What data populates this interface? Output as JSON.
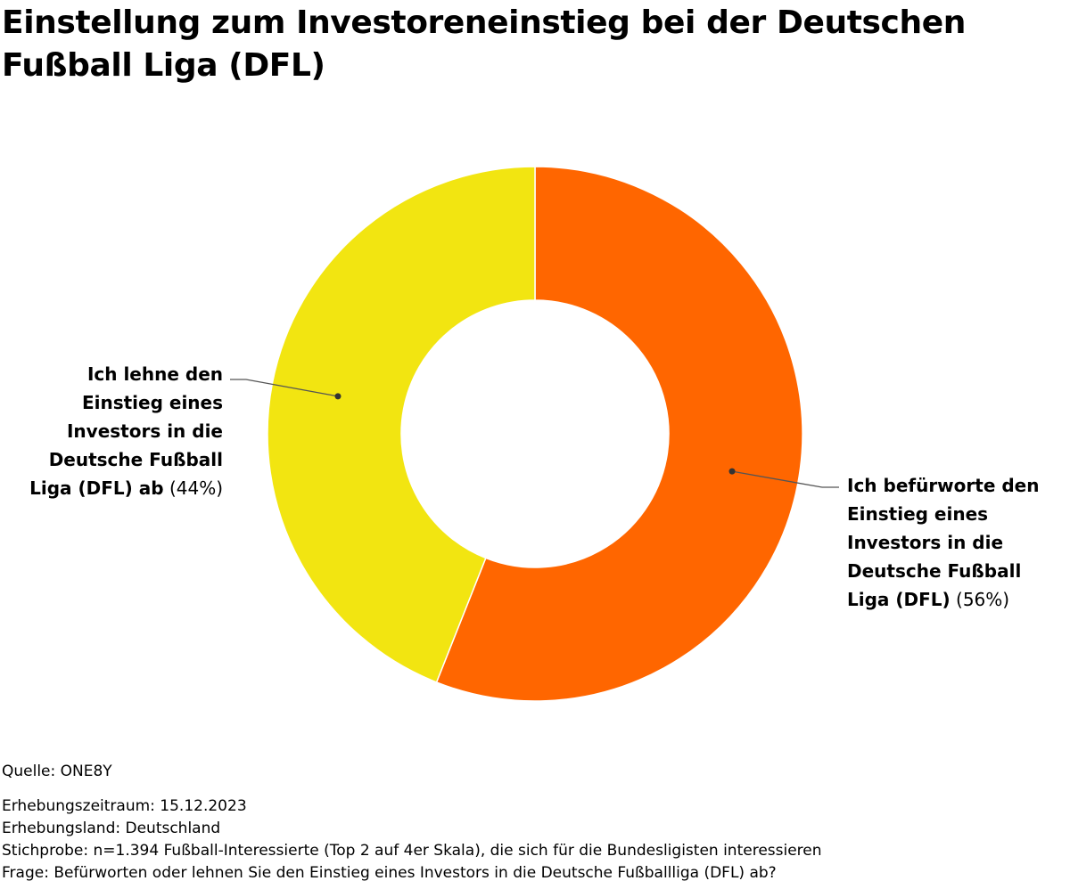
{
  "title": "Einstellung zum Investoreneinstieg bei der Deutschen Fußball Liga (DFL)",
  "chart_data": {
    "type": "pie",
    "variant": "donut",
    "title": "Einstellung zum Investoreneinstieg bei der Deutschen Fußball Liga (DFL)",
    "unit": "%",
    "legend": "none",
    "slices": [
      {
        "label": "Ich befürworte den Einstieg eines Investors in die Deutsche Fußball Liga (DFL)",
        "value": 56,
        "value_label": "(56%)",
        "color": "#ff6600"
      },
      {
        "label": "Ich lehne den Einstieg eines Investors in die Deutsche Fußball Liga (DFL) ab",
        "value": 44,
        "value_label": "(44%)",
        "color": "#f2e511"
      }
    ]
  },
  "footer": {
    "source": "Quelle: ONE8Y",
    "period": "Erhebungszeitraum: 15.12.2023",
    "country": "Erhebungsland: Deutschland",
    "sample": "Stichprobe: n=1.394 Fußball-Interessierte (Top 2 auf 4er Skala), die sich für die Bundesligisten interessieren",
    "question": "Frage: Befürworten oder lehnen Sie den Einstieg eines Investors in die Deutsche Fußballliga (DFL) ab?"
  }
}
